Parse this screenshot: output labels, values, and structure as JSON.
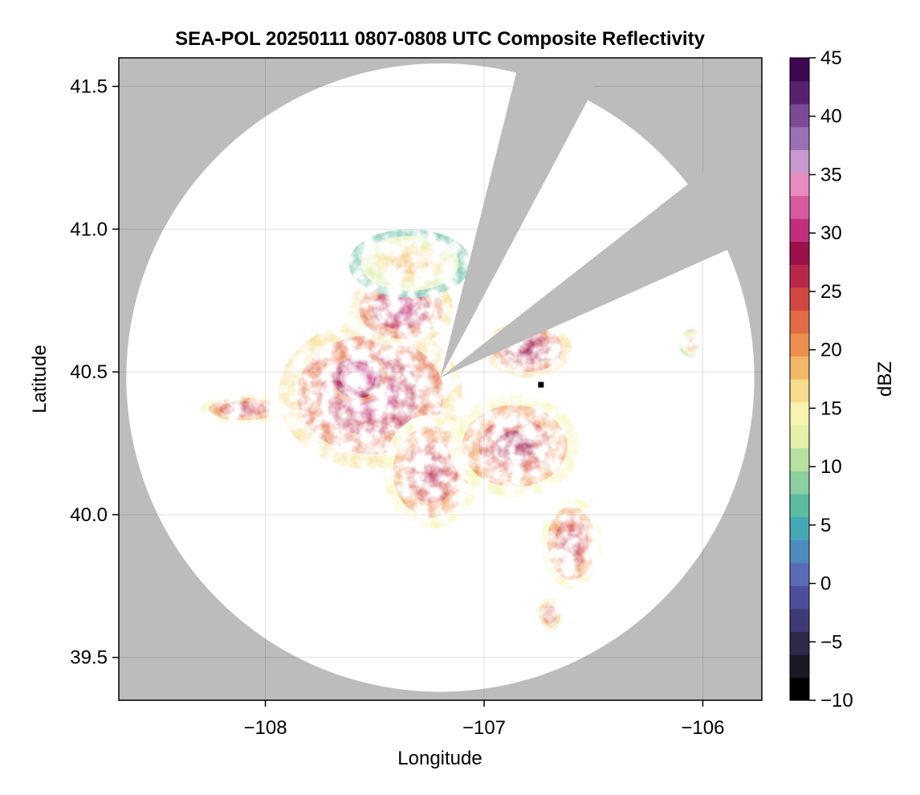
{
  "chart_data": {
    "type": "heatmap",
    "title": "SEA-POL 20250111 0807-0808 UTC Composite Reflectivity",
    "xlabel": "Longitude",
    "ylabel": "Latitude",
    "xlim": [
      -108.67,
      -105.73
    ],
    "ylim": [
      39.35,
      41.6
    ],
    "xticks": [
      -108,
      -107,
      -106
    ],
    "xtick_labels": [
      "−108",
      "−107",
      "−106"
    ],
    "yticks": [
      39.5,
      40.0,
      40.5,
      41.0,
      41.5
    ],
    "ytick_labels": [
      "39.5",
      "40.0",
      "40.5",
      "41.0",
      "41.5"
    ],
    "grid": true,
    "colorbar": {
      "label": "dBZ",
      "range": [
        -10,
        45
      ],
      "ticks": [
        -10,
        -5,
        0,
        5,
        10,
        15,
        20,
        25,
        30,
        35,
        40,
        45
      ],
      "tick_labels": [
        "−10",
        "−5",
        "0",
        "5",
        "10",
        "15",
        "20",
        "25",
        "30",
        "35",
        "40",
        "45"
      ],
      "colormap": "spectral (reversed, extended)",
      "colors": [
        "#000000",
        "#1a1a26",
        "#2e2a4a",
        "#3e3a76",
        "#4e4e9e",
        "#5a6cb8",
        "#4e8cc0",
        "#44a8b4",
        "#5cbca0",
        "#8ccfa0",
        "#b8e0a0",
        "#e4f0a8",
        "#f8f4b0",
        "#f6dc8c",
        "#f2b866",
        "#ec9050",
        "#e26a44",
        "#d24842",
        "#b8284a",
        "#9a1048",
        "#c0307a",
        "#d85a9e",
        "#e88cc0",
        "#c89ad0",
        "#9a70b4",
        "#7a4a96",
        "#5a2070",
        "#3e0850"
      ]
    },
    "radar": {
      "site_lon": -107.2,
      "site_lat": 40.48,
      "max_range_lat_deg": 1.1,
      "blocked_sectors_deg_from_north": [
        [
          14,
          28
        ],
        [
          52,
          66
        ]
      ],
      "no_data_color": "#bcbcbc",
      "in_range_color": "#ffffff"
    },
    "marker": {
      "lon": -106.74,
      "lat": 40.455
    },
    "echoes": [
      {
        "name": "main-west",
        "lon": -107.52,
        "lat": 40.42,
        "r_lon": 0.42,
        "r_lat": 0.26,
        "dbz": 27
      },
      {
        "name": "core-west",
        "lon": -107.58,
        "lat": 40.48,
        "r_lon": 0.14,
        "r_lat": 0.09,
        "dbz": 33
      },
      {
        "name": "north-core",
        "lon": -107.38,
        "lat": 40.72,
        "r_lon": 0.24,
        "r_lat": 0.13,
        "dbz": 27
      },
      {
        "name": "north-fringe",
        "lon": -107.34,
        "lat": 40.88,
        "r_lon": 0.28,
        "r_lat": 0.12,
        "dbz": 16
      },
      {
        "name": "west-arm",
        "lon": -108.1,
        "lat": 40.37,
        "r_lon": 0.2,
        "r_lat": 0.05,
        "dbz": 24
      },
      {
        "name": "south-rays",
        "lon": -107.24,
        "lat": 40.15,
        "r_lon": 0.22,
        "r_lat": 0.2,
        "dbz": 24
      },
      {
        "name": "southeast-main",
        "lon": -106.86,
        "lat": 40.24,
        "r_lon": 0.3,
        "r_lat": 0.18,
        "dbz": 25
      },
      {
        "name": "east-wedge",
        "lon": -106.8,
        "lat": 40.58,
        "r_lon": 0.2,
        "r_lat": 0.1,
        "dbz": 26
      },
      {
        "name": "south-tail",
        "lon": -106.6,
        "lat": 39.9,
        "r_lon": 0.14,
        "r_lat": 0.16,
        "dbz": 24
      },
      {
        "name": "far-south",
        "lon": -106.7,
        "lat": 39.65,
        "r_lon": 0.06,
        "r_lat": 0.06,
        "dbz": 22
      },
      {
        "name": "east-cluster",
        "lon": -106.05,
        "lat": 40.6,
        "r_lon": 0.06,
        "r_lat": 0.05,
        "dbz": 20
      }
    ]
  }
}
